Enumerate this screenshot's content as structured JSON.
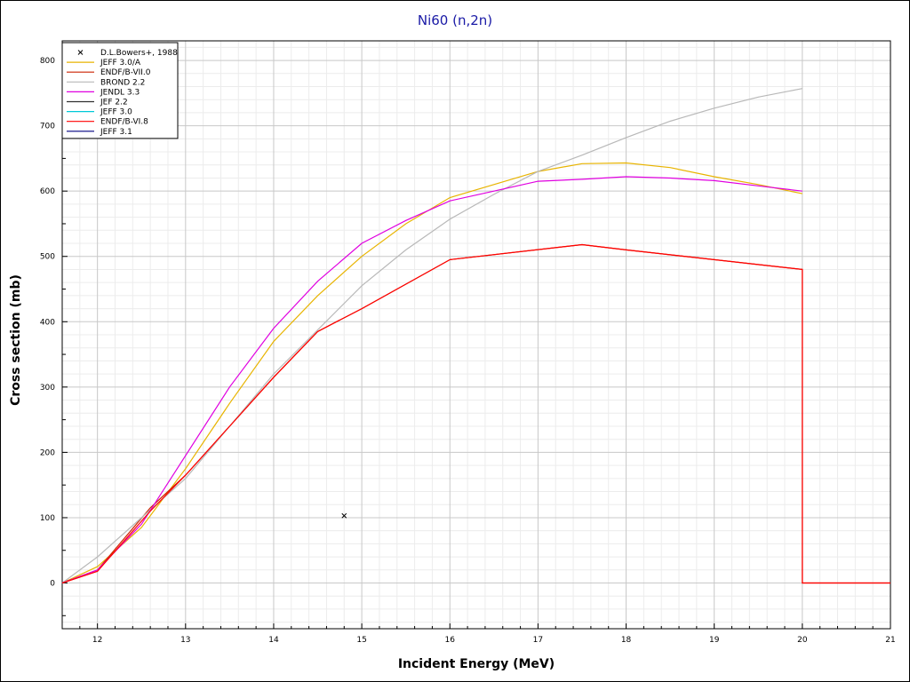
{
  "chart_data": {
    "type": "line",
    "title": "Ni60 (n,2n)",
    "xlabel": "Incident Energy (MeV)",
    "ylabel": "Cross section (mb)",
    "xlim": [
      11.6,
      21
    ],
    "ylim": [
      -70,
      830
    ],
    "x_ticks": [
      "12",
      "13",
      "14",
      "15",
      "16",
      "17",
      "18",
      "19",
      "20",
      "21"
    ],
    "y_ticks": [
      "0",
      "100",
      "200",
      "300",
      "400",
      "500",
      "600",
      "700",
      "800"
    ],
    "grid": true,
    "legend_position": "top-left",
    "series": [
      {
        "name": "D.L.Bowers+, 1988",
        "kind": "scatter",
        "color": "#000000",
        "points": [
          [
            14.8,
            103
          ]
        ]
      },
      {
        "name": "JEFF 3.0/A",
        "kind": "line",
        "color": "#e8b400",
        "points": [
          [
            11.6,
            0
          ],
          [
            12.0,
            25
          ],
          [
            12.5,
            85
          ],
          [
            13.0,
            175
          ],
          [
            13.5,
            275
          ],
          [
            14.0,
            370
          ],
          [
            14.5,
            440
          ],
          [
            15.0,
            500
          ],
          [
            15.5,
            550
          ],
          [
            16.0,
            590
          ],
          [
            16.5,
            610
          ],
          [
            17.0,
            630
          ],
          [
            17.5,
            642
          ],
          [
            18.0,
            643
          ],
          [
            18.5,
            636
          ],
          [
            19.0,
            622
          ],
          [
            19.5,
            610
          ],
          [
            20.0,
            596
          ]
        ]
      },
      {
        "name": "ENDF/B-VII.0",
        "kind": "line",
        "color": "#cc2200",
        "points": [
          [
            11.6,
            0
          ],
          [
            12.0,
            20
          ],
          [
            12.6,
            115
          ],
          [
            13.0,
            165
          ],
          [
            13.5,
            240
          ],
          [
            14.0,
            315
          ],
          [
            14.5,
            385
          ],
          [
            15.0,
            420
          ],
          [
            16.0,
            495
          ],
          [
            17.5,
            518
          ],
          [
            18.0,
            510
          ],
          [
            20.0,
            480
          ],
          [
            20.0,
            0
          ],
          [
            21.0,
            0
          ]
        ]
      },
      {
        "name": "BROND 2.2",
        "kind": "line",
        "color": "#b8b8b8",
        "points": [
          [
            11.6,
            0
          ],
          [
            12.0,
            40
          ],
          [
            12.5,
            100
          ],
          [
            13.0,
            160
          ],
          [
            14.0,
            320
          ],
          [
            15.0,
            455
          ],
          [
            15.5,
            510
          ],
          [
            16.0,
            557
          ],
          [
            16.5,
            595
          ],
          [
            17.0,
            630
          ],
          [
            17.5,
            655
          ],
          [
            18.0,
            682
          ],
          [
            18.5,
            707
          ],
          [
            19.0,
            727
          ],
          [
            19.5,
            744
          ],
          [
            20.0,
            757
          ]
        ]
      },
      {
        "name": "JENDL 3.3",
        "kind": "line",
        "color": "#e000e0",
        "points": [
          [
            11.6,
            0
          ],
          [
            12.0,
            20
          ],
          [
            12.5,
            90
          ],
          [
            13.0,
            195
          ],
          [
            13.5,
            300
          ],
          [
            14.0,
            390
          ],
          [
            14.5,
            462
          ],
          [
            15.0,
            520
          ],
          [
            15.5,
            555
          ],
          [
            16.0,
            585
          ],
          [
            16.5,
            600
          ],
          [
            17.0,
            615
          ],
          [
            17.5,
            618
          ],
          [
            18.0,
            622
          ],
          [
            18.5,
            620
          ],
          [
            19.0,
            616
          ],
          [
            19.5,
            608
          ],
          [
            20.0,
            600
          ]
        ]
      },
      {
        "name": "JEF 2.2",
        "kind": "line",
        "color": "#303030",
        "points": []
      },
      {
        "name": "JEFF 3.0",
        "kind": "line",
        "color": "#00c8d8",
        "points": []
      },
      {
        "name": "ENDF/B-VI.8",
        "kind": "line",
        "color": "#ff0000",
        "points": [
          [
            11.6,
            0
          ],
          [
            12.0,
            18
          ],
          [
            12.6,
            110
          ],
          [
            13.0,
            165
          ],
          [
            13.5,
            240
          ],
          [
            14.0,
            315
          ],
          [
            14.5,
            385
          ],
          [
            15.0,
            420
          ],
          [
            16.0,
            495
          ],
          [
            17.5,
            518
          ],
          [
            18.0,
            510
          ],
          [
            20.0,
            480
          ],
          [
            20.0,
            0
          ],
          [
            21.0,
            0
          ]
        ]
      },
      {
        "name": "JEFF 3.1",
        "kind": "line",
        "color": "#000080",
        "points": []
      }
    ]
  }
}
